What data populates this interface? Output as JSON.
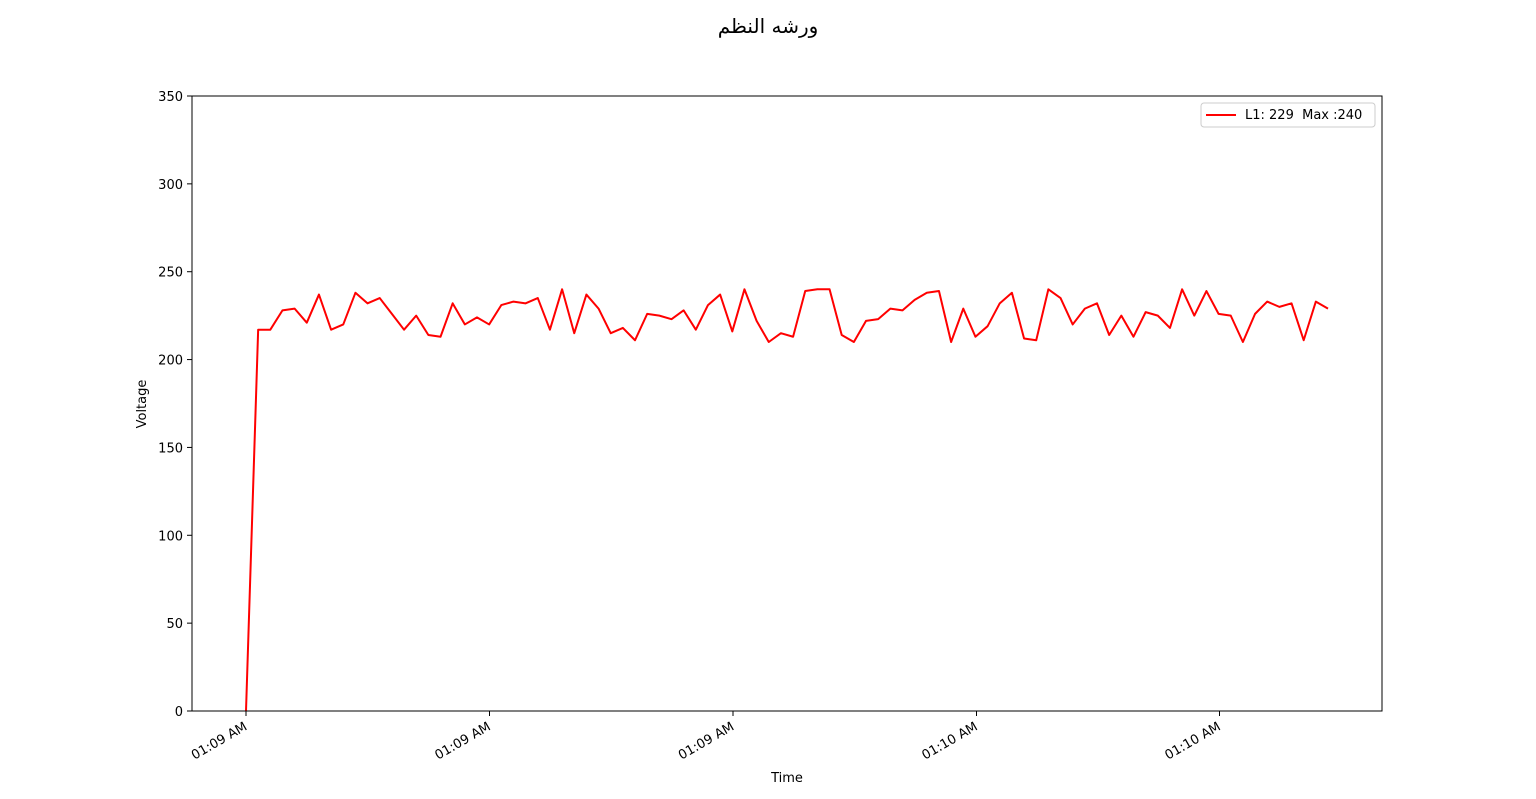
{
  "chart_data": {
    "type": "line",
    "title": "ورشه النظم",
    "xlabel": "Time",
    "ylabel": "Voltage",
    "ylim": [
      0,
      350
    ],
    "yticks": [
      0,
      50,
      100,
      150,
      200,
      250,
      300,
      350
    ],
    "xtick_labels": [
      "01:09 AM",
      "01:09 AM",
      "01:09 AM",
      "01:10 AM",
      "01:10 AM"
    ],
    "grid": false,
    "legend_position": "top-right",
    "line_color": "#ff0000",
    "series": [
      {
        "name": "L1: 229  Max :240",
        "values": [
          0,
          217,
          217,
          228,
          229,
          221,
          237,
          217,
          220,
          238,
          232,
          235,
          226,
          217,
          225,
          214,
          213,
          232,
          220,
          224,
          220,
          231,
          233,
          232,
          235,
          217,
          240,
          215,
          237,
          229,
          215,
          218,
          211,
          226,
          225,
          223,
          228,
          217,
          231,
          237,
          216,
          240,
          222,
          210,
          215,
          213,
          239,
          240,
          240,
          214,
          210,
          222,
          223,
          229,
          228,
          234,
          238,
          239,
          210,
          229,
          213,
          219,
          232,
          238,
          212,
          211,
          240,
          235,
          220,
          229,
          232,
          214,
          225,
          213,
          227,
          225,
          218,
          240,
          225,
          239,
          226,
          225,
          210,
          226,
          233,
          230,
          232,
          211,
          233,
          229
        ]
      }
    ]
  }
}
